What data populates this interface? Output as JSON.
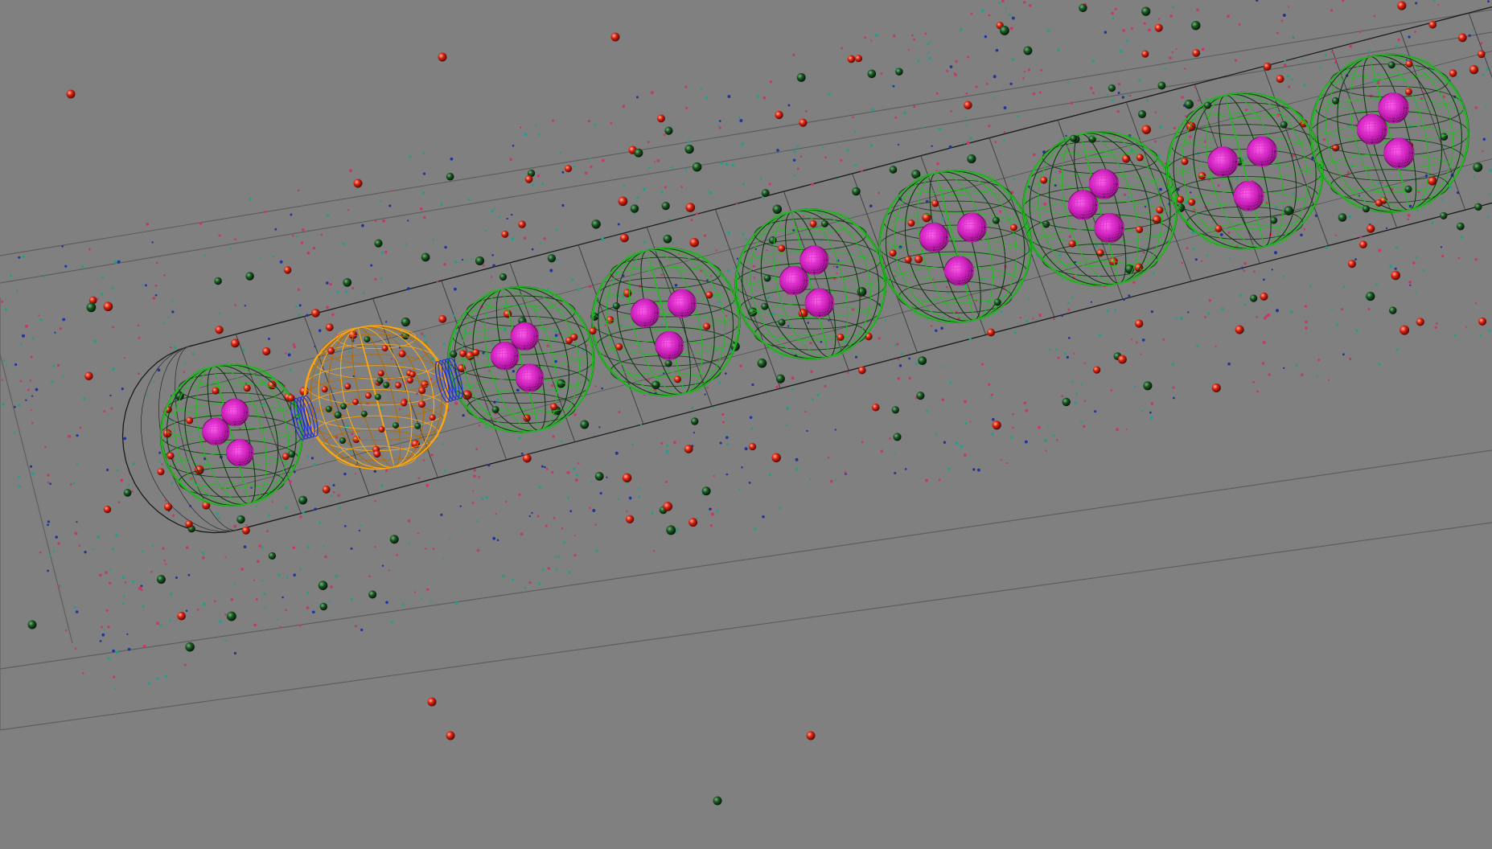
{
  "viewport": {
    "background": "#808080",
    "view_type": "3d-wireframe-perspective",
    "colors": {
      "container_wire": "#1a1a1a",
      "outer_box_wire": "#5a5a5a",
      "sphere_wire": "#22bb22",
      "sphere_wire_dark": "#0c3a0c",
      "selected_sphere_wire": "#ffaa11",
      "inner_blob": "#dd22cc",
      "inner_blob_dark": "#6a1a5a",
      "connector": "#2233cc",
      "particle_red": "#dd2211",
      "particle_dark_green": "#0d3a14",
      "dust_teal": "#2a9a8a",
      "dust_pink": "#c23a6a",
      "dust_blue": "#22339a"
    },
    "objects": [
      {
        "name": "container-capsule",
        "type": "wire-capsule"
      },
      {
        "name": "outer-bounding-box",
        "type": "wire-box"
      },
      {
        "name": "cell-sphere",
        "count": 9,
        "selected_index": 1,
        "selected_color": "orange"
      },
      {
        "name": "connector-ring",
        "count": 2
      },
      {
        "name": "particles",
        "kinds": [
          "red",
          "dark-green"
        ]
      },
      {
        "name": "dust-points",
        "kinds": [
          "teal",
          "pink",
          "blue"
        ]
      }
    ]
  }
}
